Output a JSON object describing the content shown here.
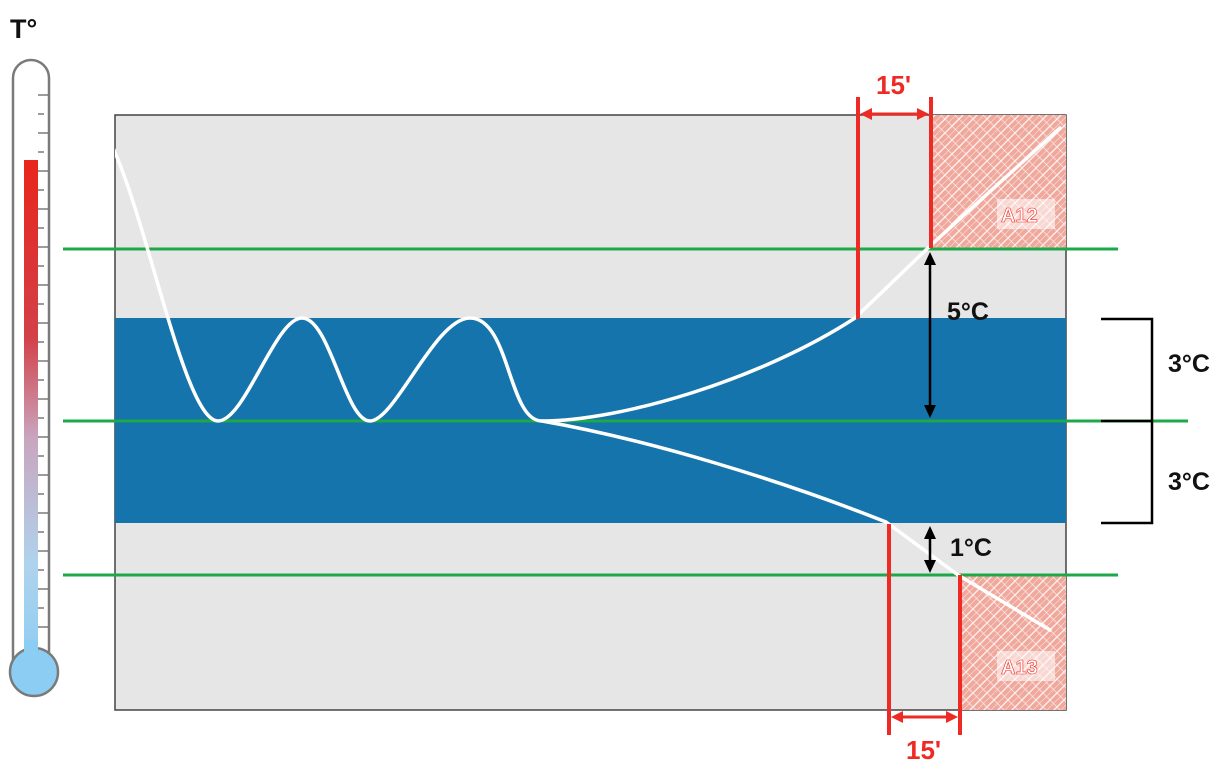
{
  "thermometer": {
    "label": "T°"
  },
  "labels": {
    "top_interval": "15'",
    "bottom_interval": "15'",
    "upper_alarm": "A12",
    "lower_alarm": "A13",
    "upper_delta": "5°C",
    "lower_delta": "1°C",
    "band_upper": "3°C",
    "band_lower": "3°C"
  },
  "colors": {
    "band": "#1474AB",
    "background": "#E6E6E6",
    "threshold_line": "#1DA84A",
    "alarm_marker": "#EE2A24",
    "alarm_zone": "#F0A89C",
    "curve": "#FFFFFF"
  }
}
